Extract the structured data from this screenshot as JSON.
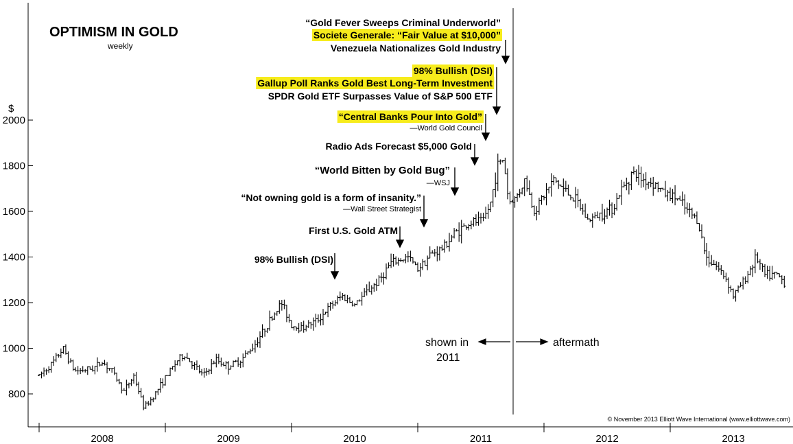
{
  "chart_data": {
    "type": "ohlc",
    "title": "OPTIMISM IN GOLD",
    "subtitle": "weekly",
    "ylabel": "$",
    "ylim": [
      660,
      2090
    ],
    "y_ticks": [
      800,
      1000,
      1200,
      1400,
      1600,
      1800,
      2000
    ],
    "x_years": [
      "2008",
      "2009",
      "2010",
      "2011",
      "2012",
      "2013"
    ],
    "series_anchors": [
      {
        "t": 2008.0,
        "p": 880
      },
      {
        "t": 2008.1,
        "p": 930
      },
      {
        "t": 2008.19,
        "p": 1000
      },
      {
        "t": 2008.28,
        "p": 900
      },
      {
        "t": 2008.42,
        "p": 910
      },
      {
        "t": 2008.5,
        "p": 940
      },
      {
        "t": 2008.58,
        "p": 900
      },
      {
        "t": 2008.67,
        "p": 810
      },
      {
        "t": 2008.75,
        "p": 880
      },
      {
        "t": 2008.83,
        "p": 740
      },
      {
        "t": 2008.88,
        "p": 770
      },
      {
        "t": 2009.0,
        "p": 870
      },
      {
        "t": 2009.1,
        "p": 950
      },
      {
        "t": 2009.15,
        "p": 970
      },
      {
        "t": 2009.3,
        "p": 880
      },
      {
        "t": 2009.4,
        "p": 950
      },
      {
        "t": 2009.5,
        "p": 920
      },
      {
        "t": 2009.6,
        "p": 950
      },
      {
        "t": 2009.7,
        "p": 1010
      },
      {
        "t": 2009.85,
        "p": 1140
      },
      {
        "t": 2009.92,
        "p": 1200
      },
      {
        "t": 2010.0,
        "p": 1100
      },
      {
        "t": 2010.08,
        "p": 1090
      },
      {
        "t": 2010.2,
        "p": 1120
      },
      {
        "t": 2010.3,
        "p": 1180
      },
      {
        "t": 2010.4,
        "p": 1230
      },
      {
        "t": 2010.5,
        "p": 1190
      },
      {
        "t": 2010.6,
        "p": 1250
      },
      {
        "t": 2010.7,
        "p": 1300
      },
      {
        "t": 2010.78,
        "p": 1370
      },
      {
        "t": 2010.92,
        "p": 1400
      },
      {
        "t": 2011.0,
        "p": 1350
      },
      {
        "t": 2011.1,
        "p": 1410
      },
      {
        "t": 2011.2,
        "p": 1440
      },
      {
        "t": 2011.3,
        "p": 1510
      },
      {
        "t": 2011.42,
        "p": 1550
      },
      {
        "t": 2011.52,
        "p": 1560
      },
      {
        "t": 2011.58,
        "p": 1640
      },
      {
        "t": 2011.63,
        "p": 1800
      },
      {
        "t": 2011.68,
        "p": 1830
      },
      {
        "t": 2011.72,
        "p": 1640
      },
      {
        "t": 2011.78,
        "p": 1660
      },
      {
        "t": 2011.85,
        "p": 1740
      },
      {
        "t": 2011.92,
        "p": 1600
      },
      {
        "t": 2012.0,
        "p": 1670
      },
      {
        "t": 2012.08,
        "p": 1740
      },
      {
        "t": 2012.15,
        "p": 1700
      },
      {
        "t": 2012.25,
        "p": 1650
      },
      {
        "t": 2012.35,
        "p": 1560
      },
      {
        "t": 2012.45,
        "p": 1590
      },
      {
        "t": 2012.55,
        "p": 1620
      },
      {
        "t": 2012.6,
        "p": 1680
      },
      {
        "t": 2012.7,
        "p": 1770
      },
      {
        "t": 2012.78,
        "p": 1740
      },
      {
        "t": 2012.88,
        "p": 1720
      },
      {
        "t": 2012.95,
        "p": 1680
      },
      {
        "t": 2013.05,
        "p": 1660
      },
      {
        "t": 2013.12,
        "p": 1610
      },
      {
        "t": 2013.22,
        "p": 1560
      },
      {
        "t": 2013.28,
        "p": 1400
      },
      {
        "t": 2013.35,
        "p": 1370
      },
      {
        "t": 2013.45,
        "p": 1300
      },
      {
        "t": 2013.5,
        "p": 1230
      },
      {
        "t": 2013.6,
        "p": 1310
      },
      {
        "t": 2013.68,
        "p": 1400
      },
      {
        "t": 2013.75,
        "p": 1320
      },
      {
        "t": 2013.85,
        "p": 1320
      },
      {
        "t": 2013.92,
        "p": 1280
      }
    ],
    "annotations": [
      {
        "text": "“Gold Fever Sweeps Criminal Underworld”",
        "highlight": false
      },
      {
        "text": "Societe Generale: “Fair Value at $10,000”",
        "highlight": true
      },
      {
        "text": "Venezuela Nationalizes Gold Industry",
        "highlight": false
      },
      {
        "text": "98% Bullish (DSI)",
        "highlight": true
      },
      {
        "text": "Gallup Poll Ranks Gold Best Long-Term Investment",
        "highlight": true
      },
      {
        "text": "SPDR Gold ETF Surpasses Value of S&P 500 ETF",
        "highlight": false
      },
      {
        "text": "“Central Banks Pour Into Gold”",
        "highlight": true
      },
      {
        "text": "—World Gold Council",
        "highlight": false
      },
      {
        "text": "Radio Ads Forecast $5,000 Gold",
        "highlight": false
      },
      {
        "text": "“World Bitten by Gold Bug”",
        "highlight": false
      },
      {
        "text": "—WSJ",
        "highlight": false
      },
      {
        "text": "“Not owning gold is a form of insanity.”",
        "highlight": false
      },
      {
        "text": "—Wall Street Strategist",
        "highlight": false
      },
      {
        "text": "First U.S. Gold ATM",
        "highlight": false
      },
      {
        "text": "98% Bullish (DSI)",
        "highlight": false
      }
    ],
    "divider_labels": {
      "left_line1": "shown in",
      "left_line2": "2011",
      "right": "aftermath"
    },
    "copyright": "© November 2013 Elliott Wave International (www.elliottwave.com)",
    "colors": {
      "highlight": "#f7ec1c",
      "ink": "#000000",
      "background": "#ffffff"
    }
  }
}
